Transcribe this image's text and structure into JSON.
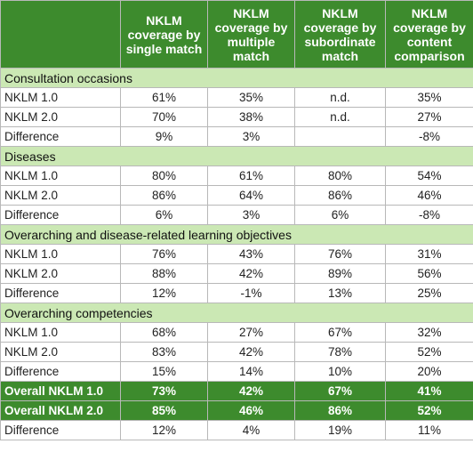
{
  "table": {
    "headers": [
      "",
      "NKLM coverage by single match",
      "NKLM coverage by multiple match",
      "NKLM coverage by subordinate match",
      "NKLM coverage by content comparison"
    ],
    "sections": [
      {
        "title": "Consultation occasions",
        "rows": [
          [
            "NKLM 1.0",
            "61%",
            "35%",
            "n.d.",
            "35%"
          ],
          [
            "NKLM 2.0",
            "70%",
            "38%",
            "n.d.",
            "27%"
          ],
          [
            "Difference",
            "9%",
            "3%",
            "",
            "-8%"
          ]
        ]
      },
      {
        "title": "Diseases",
        "rows": [
          [
            "NKLM 1.0",
            "80%",
            "61%",
            "80%",
            "54%"
          ],
          [
            "NKLM 2.0",
            "86%",
            "64%",
            "86%",
            "46%"
          ],
          [
            "Difference",
            "6%",
            "3%",
            "6%",
            "-8%"
          ]
        ]
      },
      {
        "title": "Overarching and disease-related learning objectives",
        "rows": [
          [
            "NKLM 1.0",
            "76%",
            "43%",
            "76%",
            "31%"
          ],
          [
            "NKLM 2.0",
            "88%",
            "42%",
            "89%",
            "56%"
          ],
          [
            "Difference",
            "12%",
            "-1%",
            "13%",
            "25%"
          ]
        ]
      },
      {
        "title": "Overarching competencies",
        "rows": [
          [
            "NKLM 1.0",
            "68%",
            "27%",
            "67%",
            "32%"
          ],
          [
            "NKLM 2.0",
            "83%",
            "42%",
            "78%",
            "52%"
          ],
          [
            "Difference",
            "15%",
            "14%",
            "10%",
            "20%"
          ]
        ]
      }
    ],
    "overall": [
      [
        "Overall NKLM 1.0",
        "73%",
        "42%",
        "67%",
        "41%"
      ],
      [
        "Overall NKLM 2.0",
        "85%",
        "46%",
        "86%",
        "52%"
      ]
    ],
    "final_difference": [
      "Difference",
      "12%",
      "4%",
      "19%",
      "11%"
    ]
  },
  "colors": {
    "header_bg": "#3d8b2d",
    "section_bg": "#cbe8b4",
    "overall_bg": "#3d8b2d"
  }
}
